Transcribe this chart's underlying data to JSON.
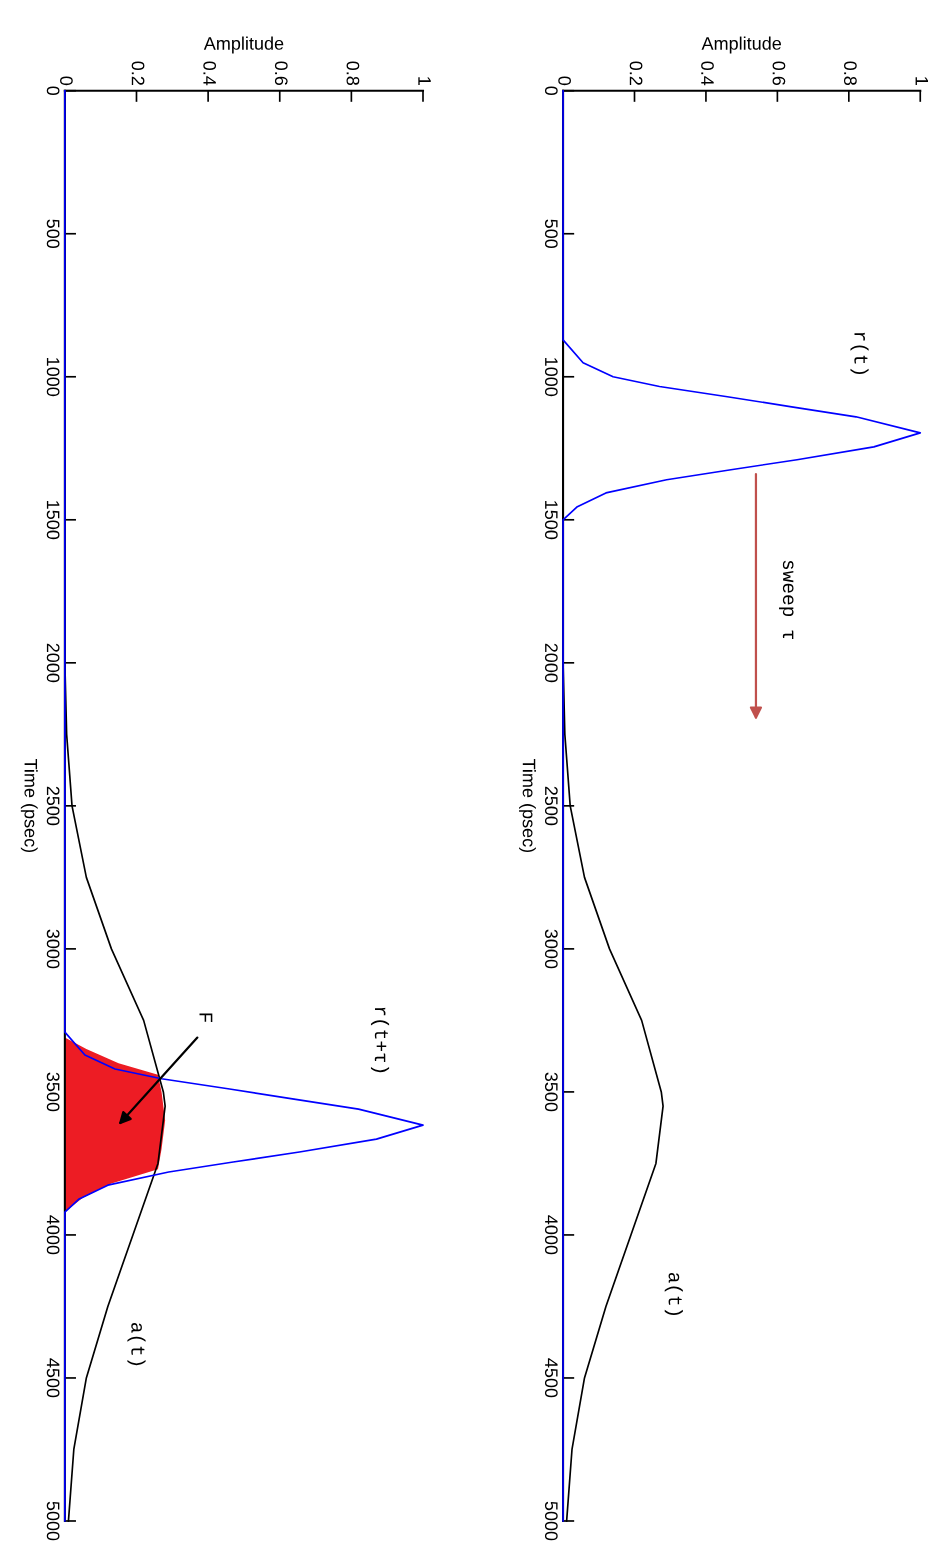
{
  "chart_data": [
    {
      "type": "line",
      "xlabel": "Amplitude",
      "ylabel": "Time (psec)",
      "xlim": [
        0,
        1
      ],
      "ylim": [
        5000,
        0
      ],
      "xticks": [
        0,
        0.2,
        0.4,
        0.6,
        0.8,
        1
      ],
      "yticks": [
        0,
        500,
        1000,
        1500,
        2000,
        2500,
        3000,
        3500,
        4000,
        4500,
        5000
      ],
      "series": [
        {
          "color": "#000000",
          "x": [
            0,
            0,
            0.005,
            0.02,
            0.06,
            0.13,
            0.22,
            0.275,
            0.28,
            0.26,
            0.19,
            0.12,
            0.06,
            0.025,
            0.01
          ],
          "values": [
            0,
            2000,
            2250,
            2500,
            2750,
            3000,
            3250,
            3500,
            3550,
            3750,
            4000,
            4250,
            4500,
            4750,
            5000
          ]
        },
        {
          "color": "#0000ff",
          "x": [
            0,
            0,
            0.056,
            0.14,
            0.27,
            0.46,
            0.64,
            0.82,
            1.0,
            0.87,
            0.655,
            0.47,
            0.29,
            0.12,
            0.04,
            0,
            0
          ],
          "values": [
            0,
            871,
            951,
            1000,
            1034,
            1070,
            1105,
            1140,
            1196,
            1245,
            1290,
            1325,
            1360,
            1406,
            1454,
            1500,
            5000
          ]
        }
      ],
      "annotations": [
        "r(t)",
        "a(t)",
        "sweep τ"
      ]
    },
    {
      "type": "line",
      "xlabel": "Amplitude",
      "ylabel": "Time (psec)",
      "xlim": [
        0,
        1
      ],
      "ylim": [
        5000,
        0
      ],
      "xticks": [
        0,
        0.2,
        0.4,
        0.6,
        0.8,
        1
      ],
      "yticks": [
        0,
        500,
        1000,
        1500,
        2000,
        2500,
        3000,
        3500,
        4000,
        4500,
        5000
      ],
      "series": [
        {
          "type": "area",
          "color": "#ed1c24",
          "x": [
            0,
            0.06,
            0.15,
            0.26,
            0.27,
            0.28,
            0.27,
            0.26,
            0.13,
            0.05,
            0
          ],
          "values": [
            3310,
            3350,
            3400,
            3440,
            3500,
            3600,
            3700,
            3770,
            3820,
            3870,
            3920
          ]
        },
        {
          "color": "#000000",
          "x": [
            0,
            0,
            0.005,
            0.02,
            0.06,
            0.13,
            0.22,
            0.275,
            0.28,
            0.26,
            0.19,
            0.12,
            0.06,
            0.025,
            0.01
          ],
          "values": [
            0,
            2000,
            2250,
            2500,
            2750,
            3000,
            3250,
            3500,
            3550,
            3750,
            4000,
            4250,
            4500,
            4750,
            5000
          ]
        },
        {
          "color": "#0000ff",
          "x": [
            0,
            0,
            0.056,
            0.14,
            0.27,
            0.46,
            0.64,
            0.82,
            1.0,
            0.87,
            0.655,
            0.47,
            0.29,
            0.12,
            0.04,
            0,
            0
          ],
          "values": [
            0,
            3291,
            3371,
            3420,
            3454,
            3490,
            3525,
            3560,
            3616,
            3665,
            3710,
            3745,
            3780,
            3826,
            3874,
            3920,
            5000
          ]
        }
      ],
      "annotations": [
        "r(t+τ)",
        "F",
        "a(t)"
      ]
    }
  ]
}
